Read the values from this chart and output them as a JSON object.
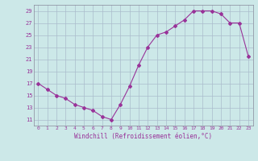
{
  "x": [
    0,
    1,
    2,
    3,
    4,
    5,
    6,
    7,
    8,
    9,
    10,
    11,
    12,
    13,
    14,
    15,
    16,
    17,
    18,
    19,
    20,
    21,
    22,
    23
  ],
  "y": [
    17,
    16,
    15,
    14.5,
    13.5,
    13,
    12.5,
    11.5,
    11,
    13.5,
    16.5,
    20,
    23,
    25,
    25.5,
    26.5,
    27.5,
    29,
    29,
    29,
    28.5,
    27,
    27,
    21.5
  ],
  "line_color": "#993399",
  "marker": "D",
  "marker_size": 2,
  "bg_color": "#cce8e8",
  "grid_color": "#aabccc",
  "xlabel": "Windchill (Refroidissement éolien,°C)",
  "xlabel_color": "#993399",
  "tick_color": "#993399",
  "ylim": [
    10,
    30
  ],
  "yticks": [
    11,
    13,
    15,
    17,
    19,
    21,
    23,
    25,
    27,
    29
  ],
  "xlim": [
    -0.5,
    23.5
  ],
  "xticks": [
    0,
    1,
    2,
    3,
    4,
    5,
    6,
    7,
    8,
    9,
    10,
    11,
    12,
    13,
    14,
    15,
    16,
    17,
    18,
    19,
    20,
    21,
    22,
    23
  ]
}
